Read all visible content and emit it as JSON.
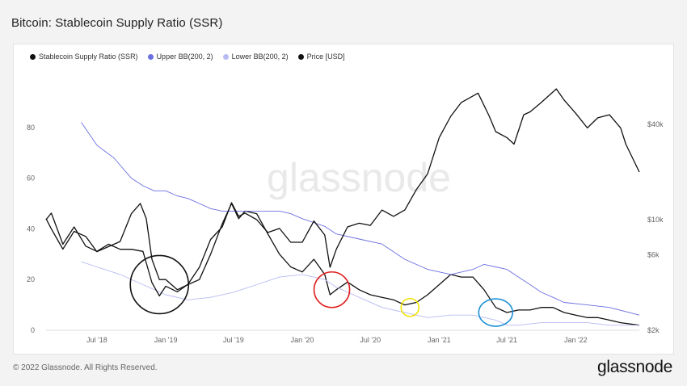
{
  "title": "Bitcoin: Stablecoin Supply Ratio (SSR)",
  "footer": "© 2022 Glassnode. All Rights Reserved.",
  "brand": "glassnode",
  "watermark": "glassnode",
  "legend": [
    {
      "label": "Stablecoin Supply Ratio (SSR)",
      "color": "#111111"
    },
    {
      "label": "Upper BB(200, 2)",
      "color": "#6b6fe0"
    },
    {
      "label": "Lower BB(200, 2)",
      "color": "#b8baf3"
    },
    {
      "label": "Price [USD]",
      "color": "#111111"
    }
  ],
  "colors": {
    "ssr": "#111111",
    "price": "#111111",
    "upper_bb": "#6b6fe0",
    "lower_bb": "#b8baf3",
    "circle_black": "#111111",
    "circle_red": "#e02020",
    "circle_yellow": "#f2e200",
    "circle_blue": "#1e90d6"
  },
  "chart_data": {
    "type": "line",
    "title": "Bitcoin: Stablecoin Supply Ratio (SSR)",
    "x_range": [
      "2018-02-15",
      "2022-06-20"
    ],
    "x_tick_labels": [
      {
        "label": "Jul '18",
        "date": "2018-07-01"
      },
      {
        "label": "Jan '19",
        "date": "2019-01-01"
      },
      {
        "label": "Jul '19",
        "date": "2019-07-01"
      },
      {
        "label": "Jan '20",
        "date": "2020-01-01"
      },
      {
        "label": "Jul '20",
        "date": "2020-07-01"
      },
      {
        "label": "Jan '21",
        "date": "2021-01-01"
      },
      {
        "label": "Jul '21",
        "date": "2021-07-01"
      },
      {
        "label": "Jan '22",
        "date": "2022-01-01"
      }
    ],
    "y_left": {
      "min": 0,
      "max": 100,
      "ticks": [
        0,
        20,
        40,
        60,
        80
      ]
    },
    "y_right": {
      "scale": "log",
      "min": 2000,
      "max": 80000,
      "ticks": [
        {
          "label": "$2k",
          "value": 2000
        },
        {
          "label": "$6k",
          "value": 6000
        },
        {
          "label": "$10k",
          "value": 10000
        },
        {
          "label": "$40k",
          "value": 40000
        }
      ]
    },
    "grid": false,
    "legend_position": "top-left",
    "series": [
      {
        "name": "Stablecoin Supply Ratio (SSR)",
        "axis": "left",
        "points": [
          [
            "2018-02-15",
            44
          ],
          [
            "2018-03-01",
            40
          ],
          [
            "2018-04-01",
            32
          ],
          [
            "2018-05-01",
            39
          ],
          [
            "2018-06-01",
            37
          ],
          [
            "2018-07-01",
            31
          ],
          [
            "2018-08-01",
            33
          ],
          [
            "2018-09-01",
            35
          ],
          [
            "2018-10-01",
            46
          ],
          [
            "2018-10-25",
            50
          ],
          [
            "2018-11-10",
            44
          ],
          [
            "2018-11-25",
            28
          ],
          [
            "2018-12-15",
            20
          ],
          [
            "2019-01-01",
            20
          ],
          [
            "2019-02-01",
            16
          ],
          [
            "2019-03-01",
            18
          ],
          [
            "2019-04-01",
            20
          ],
          [
            "2019-05-01",
            30
          ],
          [
            "2019-06-01",
            42
          ],
          [
            "2019-06-26",
            50
          ],
          [
            "2019-07-15",
            44
          ],
          [
            "2019-08-01",
            47
          ],
          [
            "2019-09-01",
            46
          ],
          [
            "2019-10-01",
            38
          ],
          [
            "2019-11-01",
            30
          ],
          [
            "2019-12-01",
            25
          ],
          [
            "2020-01-01",
            23
          ],
          [
            "2020-02-01",
            28
          ],
          [
            "2020-03-01",
            22
          ],
          [
            "2020-03-15",
            14
          ],
          [
            "2020-04-01",
            16
          ],
          [
            "2020-05-01",
            19
          ],
          [
            "2020-06-01",
            16
          ],
          [
            "2020-07-01",
            14
          ],
          [
            "2020-08-01",
            13
          ],
          [
            "2020-09-01",
            12
          ],
          [
            "2020-10-01",
            10
          ],
          [
            "2020-11-01",
            11
          ],
          [
            "2020-12-01",
            14
          ],
          [
            "2021-01-01",
            18
          ],
          [
            "2021-02-01",
            22
          ],
          [
            "2021-03-01",
            21
          ],
          [
            "2021-04-01",
            21
          ],
          [
            "2021-05-01",
            16
          ],
          [
            "2021-06-01",
            9
          ],
          [
            "2021-07-01",
            7
          ],
          [
            "2021-08-01",
            8
          ],
          [
            "2021-09-01",
            8
          ],
          [
            "2021-10-01",
            9
          ],
          [
            "2021-11-01",
            9
          ],
          [
            "2021-12-01",
            7
          ],
          [
            "2022-01-01",
            6
          ],
          [
            "2022-02-01",
            5
          ],
          [
            "2022-03-01",
            5
          ],
          [
            "2022-04-01",
            4
          ],
          [
            "2022-05-01",
            3
          ],
          [
            "2022-06-20",
            2
          ]
        ]
      },
      {
        "name": "Upper BB(200, 2)",
        "axis": "left",
        "points": [
          [
            "2018-05-20",
            82
          ],
          [
            "2018-07-01",
            73
          ],
          [
            "2018-08-15",
            68
          ],
          [
            "2018-10-01",
            60
          ],
          [
            "2018-11-01",
            57
          ],
          [
            "2018-12-01",
            55
          ],
          [
            "2019-01-01",
            55
          ],
          [
            "2019-02-01",
            53
          ],
          [
            "2019-03-01",
            52
          ],
          [
            "2019-04-01",
            50
          ],
          [
            "2019-05-01",
            48
          ],
          [
            "2019-06-01",
            47
          ],
          [
            "2019-07-01",
            47
          ],
          [
            "2019-08-01",
            47
          ],
          [
            "2019-09-01",
            47
          ],
          [
            "2019-10-01",
            47
          ],
          [
            "2019-11-01",
            47
          ],
          [
            "2019-12-01",
            46
          ],
          [
            "2020-01-01",
            44
          ],
          [
            "2020-03-01",
            41
          ],
          [
            "2020-04-01",
            38
          ],
          [
            "2020-06-01",
            36
          ],
          [
            "2020-08-01",
            34
          ],
          [
            "2020-10-01",
            28
          ],
          [
            "2020-12-01",
            24
          ],
          [
            "2021-02-01",
            22
          ],
          [
            "2021-04-01",
            24
          ],
          [
            "2021-05-01",
            26
          ],
          [
            "2021-06-01",
            25
          ],
          [
            "2021-07-01",
            24
          ],
          [
            "2021-08-01",
            21
          ],
          [
            "2021-09-01",
            18
          ],
          [
            "2021-10-01",
            15
          ],
          [
            "2021-11-01",
            13
          ],
          [
            "2021-12-01",
            11
          ],
          [
            "2022-02-01",
            10
          ],
          [
            "2022-04-01",
            9
          ],
          [
            "2022-06-20",
            6
          ]
        ]
      },
      {
        "name": "Lower BB(200, 2)",
        "axis": "left",
        "points": [
          [
            "2018-05-20",
            27
          ],
          [
            "2018-07-01",
            25
          ],
          [
            "2018-09-01",
            22
          ],
          [
            "2018-11-01",
            18
          ],
          [
            "2019-01-01",
            14
          ],
          [
            "2019-03-01",
            12
          ],
          [
            "2019-05-01",
            13
          ],
          [
            "2019-07-01",
            15
          ],
          [
            "2019-09-01",
            18
          ],
          [
            "2019-11-01",
            21
          ],
          [
            "2020-01-01",
            22
          ],
          [
            "2020-03-01",
            20
          ],
          [
            "2020-04-01",
            17
          ],
          [
            "2020-06-01",
            13
          ],
          [
            "2020-08-01",
            9
          ],
          [
            "2020-10-01",
            7
          ],
          [
            "2020-12-01",
            5
          ],
          [
            "2021-02-01",
            6
          ],
          [
            "2021-04-01",
            6
          ],
          [
            "2021-06-01",
            4
          ],
          [
            "2021-07-01",
            2
          ],
          [
            "2021-08-01",
            2
          ],
          [
            "2021-10-01",
            3
          ],
          [
            "2021-12-01",
            3
          ],
          [
            "2022-02-01",
            3
          ],
          [
            "2022-04-01",
            2
          ],
          [
            "2022-06-20",
            2
          ]
        ]
      },
      {
        "name": "Price [USD]",
        "axis": "right",
        "points": [
          [
            "2018-02-15",
            10000
          ],
          [
            "2018-03-01",
            11000
          ],
          [
            "2018-04-01",
            7000
          ],
          [
            "2018-05-01",
            9000
          ],
          [
            "2018-06-01",
            6800
          ],
          [
            "2018-07-01",
            6300
          ],
          [
            "2018-08-01",
            7000
          ],
          [
            "2018-09-01",
            6500
          ],
          [
            "2018-10-01",
            6500
          ],
          [
            "2018-11-01",
            6300
          ],
          [
            "2018-11-25",
            4000
          ],
          [
            "2018-12-15",
            3300
          ],
          [
            "2019-01-01",
            3800
          ],
          [
            "2019-02-01",
            3500
          ],
          [
            "2019-03-01",
            3900
          ],
          [
            "2019-04-01",
            5000
          ],
          [
            "2019-05-01",
            7500
          ],
          [
            "2019-06-01",
            9000
          ],
          [
            "2019-06-26",
            12800
          ],
          [
            "2019-07-15",
            10500
          ],
          [
            "2019-08-01",
            11000
          ],
          [
            "2019-09-01",
            10000
          ],
          [
            "2019-10-01",
            8300
          ],
          [
            "2019-11-01",
            8800
          ],
          [
            "2019-12-01",
            7200
          ],
          [
            "2020-01-01",
            7200
          ],
          [
            "2020-02-01",
            9800
          ],
          [
            "2020-03-01",
            8000
          ],
          [
            "2020-03-15",
            5000
          ],
          [
            "2020-04-01",
            6500
          ],
          [
            "2020-05-01",
            9000
          ],
          [
            "2020-06-01",
            9500
          ],
          [
            "2020-07-01",
            9200
          ],
          [
            "2020-08-01",
            11500
          ],
          [
            "2020-09-01",
            10500
          ],
          [
            "2020-10-01",
            11500
          ],
          [
            "2020-11-01",
            15500
          ],
          [
            "2020-12-01",
            19500
          ],
          [
            "2021-01-01",
            33000
          ],
          [
            "2021-02-01",
            45000
          ],
          [
            "2021-03-01",
            55000
          ],
          [
            "2021-04-15",
            63000
          ],
          [
            "2021-05-15",
            45000
          ],
          [
            "2021-06-01",
            36000
          ],
          [
            "2021-07-01",
            33000
          ],
          [
            "2021-07-20",
            30000
          ],
          [
            "2021-08-15",
            46000
          ],
          [
            "2021-09-01",
            48000
          ],
          [
            "2021-10-01",
            55000
          ],
          [
            "2021-11-10",
            67000
          ],
          [
            "2021-12-01",
            57000
          ],
          [
            "2022-01-01",
            47000
          ],
          [
            "2022-02-01",
            38000
          ],
          [
            "2022-03-01",
            44000
          ],
          [
            "2022-04-01",
            46000
          ],
          [
            "2022-05-01",
            38000
          ],
          [
            "2022-05-15",
            30000
          ],
          [
            "2022-06-20",
            20000
          ]
        ]
      }
    ],
    "annotations": [
      {
        "type": "circle",
        "color": "black",
        "date": "2018-12-15",
        "value": 18
      },
      {
        "type": "circle",
        "color": "red",
        "date": "2020-03-20",
        "value": 16
      },
      {
        "type": "circle",
        "color": "yellow",
        "date": "2020-10-15",
        "value": 9
      },
      {
        "type": "circle",
        "color": "blue",
        "date": "2021-06-01",
        "value": 7
      }
    ]
  }
}
